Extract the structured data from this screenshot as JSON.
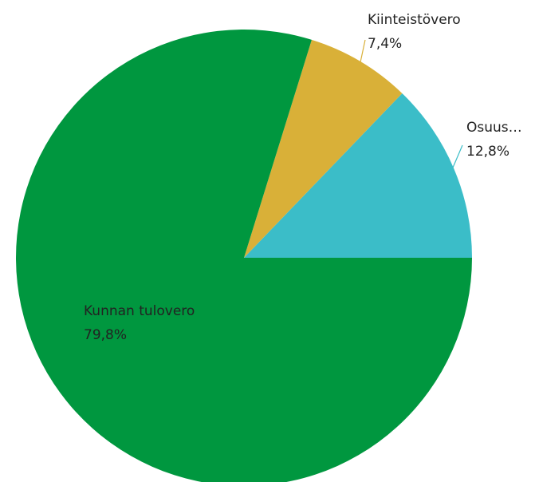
{
  "chart_data": {
    "type": "pie",
    "categories": [
      "Osuus…",
      "Kiinteistövero",
      "Kunnan tulovero"
    ],
    "values": [
      12.8,
      7.4,
      79.8
    ],
    "value_labels": [
      "12,8%",
      "7,4%",
      "79,8%"
    ],
    "colors": [
      "#3bbdc8",
      "#d9b038",
      "#00973f"
    ]
  }
}
